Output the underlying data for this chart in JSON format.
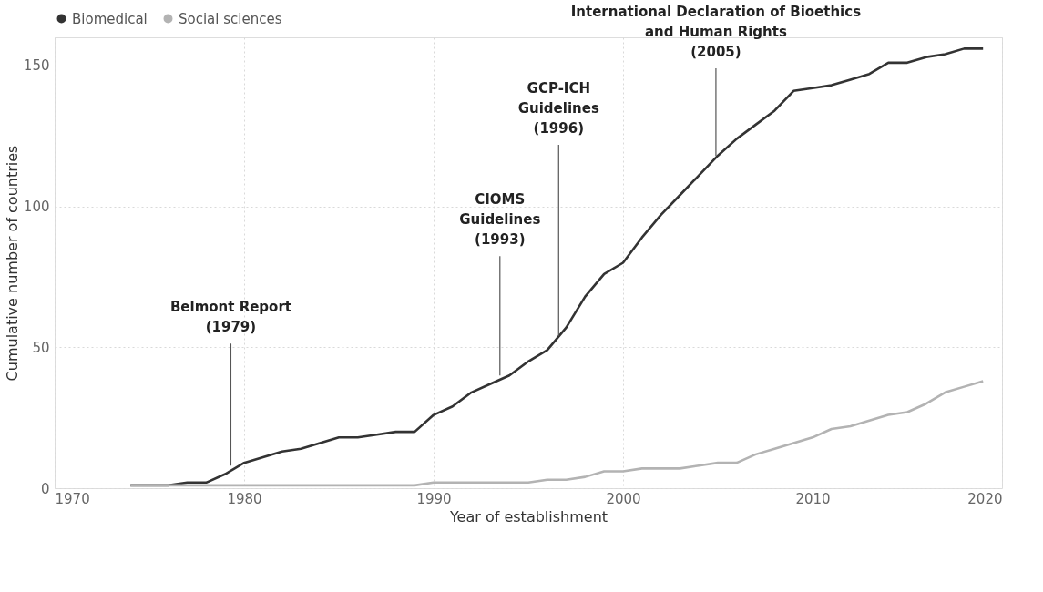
{
  "chart_data": {
    "type": "line",
    "xlabel": "Year of establishment",
    "ylabel": "Cumulative number of countries",
    "x": [
      1974,
      1975,
      1976,
      1977,
      1978,
      1979,
      1980,
      1981,
      1982,
      1983,
      1984,
      1985,
      1986,
      1987,
      1988,
      1989,
      1990,
      1991,
      1992,
      1993,
      1994,
      1995,
      1996,
      1997,
      1998,
      1999,
      2000,
      2001,
      2002,
      2003,
      2004,
      2005,
      2006,
      2007,
      2008,
      2009,
      2010,
      2011,
      2012,
      2013,
      2014,
      2015,
      2016,
      2017,
      2018,
      2019
    ],
    "series": [
      {
        "name": "Biomedical",
        "color": "#333333",
        "values": [
          1,
          1,
          1,
          2,
          2,
          5,
          9,
          11,
          13,
          14,
          16,
          18,
          18,
          19,
          20,
          20,
          26,
          29,
          34,
          37,
          40,
          45,
          49,
          57,
          68,
          76,
          80,
          89,
          97,
          104,
          111,
          118,
          124,
          129,
          134,
          141,
          142,
          143,
          145,
          147,
          151,
          151,
          153,
          154,
          156,
          156
        ]
      },
      {
        "name": "Social sciences",
        "color": "#b3b3b3",
        "values": [
          1,
          1,
          1,
          1,
          1,
          1,
          1,
          1,
          1,
          1,
          1,
          1,
          1,
          1,
          1,
          1,
          2,
          2,
          2,
          2,
          2,
          2,
          3,
          3,
          4,
          6,
          6,
          7,
          7,
          7,
          8,
          9,
          9,
          12,
          14,
          16,
          18,
          21,
          22,
          24,
          26,
          27,
          30,
          34,
          36,
          38
        ]
      }
    ],
    "annotations": [
      {
        "text": "Belmont Report\n(1979)",
        "x": 1979.3,
        "y": 8
      },
      {
        "text": "CIOMS\nGuidelines\n(1993)",
        "x": 1993.5,
        "y": 40
      },
      {
        "text": "GCP-ICH\nGuidelines\n(1996)",
        "x": 1996.6,
        "y": 54
      },
      {
        "text": "International Declaration of Bioethics\nand Human Rights\n(2005)",
        "x": 2004.9,
        "y": 118
      }
    ],
    "xlim": [
      1970,
      2020
    ],
    "xticks": [
      1970,
      1980,
      1990,
      2000,
      2010,
      2020
    ],
    "ylim": [
      0,
      160
    ],
    "yticks": [
      0,
      50,
      100,
      150
    ],
    "grid": true,
    "legend": "top left",
    "marker": "none",
    "line_style": "solid"
  }
}
